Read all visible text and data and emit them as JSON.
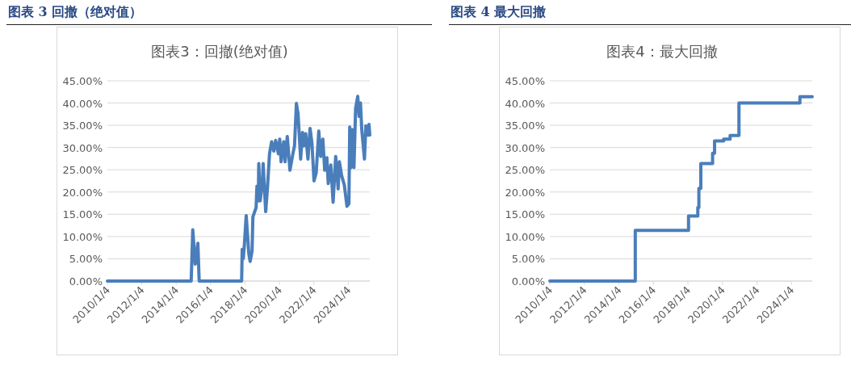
{
  "chart_data": [
    {
      "type": "line",
      "title": "图表 3 回撤（绝对值）",
      "subtitle": "图表3：回撤(绝对值)",
      "x": [
        "2010-01-04",
        "2014-11-18",
        "2014-12-22",
        "2015-02-12",
        "2015-04-09",
        "2015-05-07",
        "2017-10-24",
        "2017-11-05",
        "2017-11-28",
        "2017-12-20",
        "2018-01-29",
        "2018-03-25",
        "2018-04-23",
        "2018-06-03",
        "2018-06-20",
        "2018-08-27",
        "2018-09-14",
        "2018-10-12",
        "2018-10-23",
        "2018-11-21",
        "2019-01-07",
        "2019-01-24",
        "2019-03-19",
        "2019-04-28",
        "2019-06-08",
        "2019-07-23",
        "2019-09-08",
        "2019-10-17",
        "2019-12-13",
        "2020-01-11",
        "2020-02-09",
        "2020-04-05",
        "2020-05-04",
        "2020-06-19",
        "2020-08-15",
        "2020-10-11",
        "2020-11-20",
        "2020-12-30",
        "2021-02-03",
        "2021-03-30",
        "2021-05-09",
        "2021-06-07",
        "2021-07-16",
        "2021-09-01",
        "2021-10-16",
        "2021-11-25",
        "2022-01-08",
        "2022-02-23",
        "2022-04-19",
        "2022-05-29",
        "2022-07-14",
        "2022-08-23",
        "2022-10-08",
        "2022-11-06",
        "2022-12-31",
        "2023-02-17",
        "2023-04-13",
        "2023-06-04",
        "2023-06-30",
        "2023-08-17",
        "2023-10-13",
        "2023-12-09",
        "2024-01-19",
        "2024-02-05",
        "2024-03-03",
        "2024-03-31",
        "2024-05-05",
        "2024-06-09",
        "2024-07-24",
        "2024-08-22",
        "2024-09-20",
        "2024-10-18",
        "2024-12-14",
        "2025-01-13",
        "2025-02-27",
        "2025-03-20",
        "2025-04-06"
      ],
      "series": [
        {
          "color": "#4a7ebb",
          "values": [
            0,
            0,
            11.5,
            3.8,
            8.5,
            0,
            0,
            7.1,
            5,
            7.9,
            14.7,
            6.2,
            4.4,
            6.8,
            14.4,
            16.5,
            21.3,
            18,
            26.4,
            18,
            21.9,
            26.4,
            15.6,
            21.3,
            28.6,
            31.3,
            29.2,
            31.6,
            28.6,
            31.9,
            26.8,
            31.3,
            26.8,
            32.5,
            24.9,
            28.3,
            30.4,
            39.9,
            37.6,
            27.4,
            33.4,
            30.4,
            33.1,
            27.4,
            34.3,
            31,
            22.5,
            24.3,
            33.7,
            28,
            31.9,
            24.9,
            27.7,
            21.9,
            26.1,
            17.7,
            28,
            20.7,
            26.8,
            23.7,
            21.6,
            16.8,
            17.4,
            34.6,
            25.5,
            34,
            25.5,
            38.8,
            41.5,
            37,
            40,
            34,
            27.4,
            34.9,
            32.8,
            35.2,
            32.8
          ]
        }
      ],
      "xlim": [
        "2010-01-04",
        "2025-04-06"
      ],
      "xticks": [
        {
          "value": "2010-01-04",
          "label": "2010/1/4"
        },
        {
          "value": "2012-01-04",
          "label": "2012/1/4"
        },
        {
          "value": "2014-01-04",
          "label": "2014/1/4"
        },
        {
          "value": "2016-01-04",
          "label": "2016/1/4"
        },
        {
          "value": "2018-01-04",
          "label": "2018/1/4"
        },
        {
          "value": "2020-01-04",
          "label": "2020/1/4"
        },
        {
          "value": "2022-01-04",
          "label": "2022/1/4"
        },
        {
          "value": "2024-01-04",
          "label": "2024/1/4"
        }
      ],
      "ylim": [
        0,
        45
      ],
      "yticks": [
        {
          "value": 0,
          "label": "0.00%"
        },
        {
          "value": 5,
          "label": "5.00%"
        },
        {
          "value": 10,
          "label": "10.00%"
        },
        {
          "value": 15,
          "label": "15.00%"
        },
        {
          "value": 20,
          "label": "20.00%"
        },
        {
          "value": 25,
          "label": "25.00%"
        },
        {
          "value": 30,
          "label": "30.00%"
        },
        {
          "value": 35,
          "label": "35.00%"
        },
        {
          "value": 40,
          "label": "40.00%"
        },
        {
          "value": 45,
          "label": "45.00%"
        }
      ],
      "grid": "y"
    },
    {
      "type": "step",
      "title": "图表 4 最大回撤",
      "subtitle": "图表4：最大回撤",
      "x": [
        "2010-01-04",
        "2014-12-17",
        "2018-01-17",
        "2018-08-01",
        "2018-08-24",
        "2018-10-04",
        "2019-06-10",
        "2019-07-22",
        "2020-01-31",
        "2020-06-15",
        "2020-12-19",
        "2024-07-01",
        "2025-03-19"
      ],
      "series": [
        {
          "color": "#4a7ebb",
          "values": [
            0,
            11.4,
            14.6,
            16.5,
            20.8,
            26.4,
            28.7,
            31.5,
            31.9,
            32.7,
            40,
            41.4,
            41.4
          ]
        }
      ],
      "xlim": [
        "2010-01-04",
        "2025-03-19"
      ],
      "xticks": [
        {
          "value": "2010-01-04",
          "label": "2010/1/4"
        },
        {
          "value": "2012-01-04",
          "label": "2012/1/4"
        },
        {
          "value": "2014-01-04",
          "label": "2014/1/4"
        },
        {
          "value": "2016-01-04",
          "label": "2016/1/4"
        },
        {
          "value": "2018-01-04",
          "label": "2018/1/4"
        },
        {
          "value": "2020-01-04",
          "label": "2020/1/4"
        },
        {
          "value": "2022-01-04",
          "label": "2022/1/4"
        },
        {
          "value": "2024-01-04",
          "label": "2024/1/4"
        }
      ],
      "ylim": [
        0,
        45
      ],
      "yticks": [
        {
          "value": 0,
          "label": "0.00%"
        },
        {
          "value": 5,
          "label": "5.00%"
        },
        {
          "value": 10,
          "label": "10.00%"
        },
        {
          "value": 15,
          "label": "15.00%"
        },
        {
          "value": 20,
          "label": "20.00%"
        },
        {
          "value": 25,
          "label": "25.00%"
        },
        {
          "value": 30,
          "label": "30.00%"
        },
        {
          "value": 35,
          "label": "35.00%"
        },
        {
          "value": 40,
          "label": "40.00%"
        },
        {
          "value": 45,
          "label": "45.00%"
        }
      ],
      "grid": "y"
    }
  ]
}
